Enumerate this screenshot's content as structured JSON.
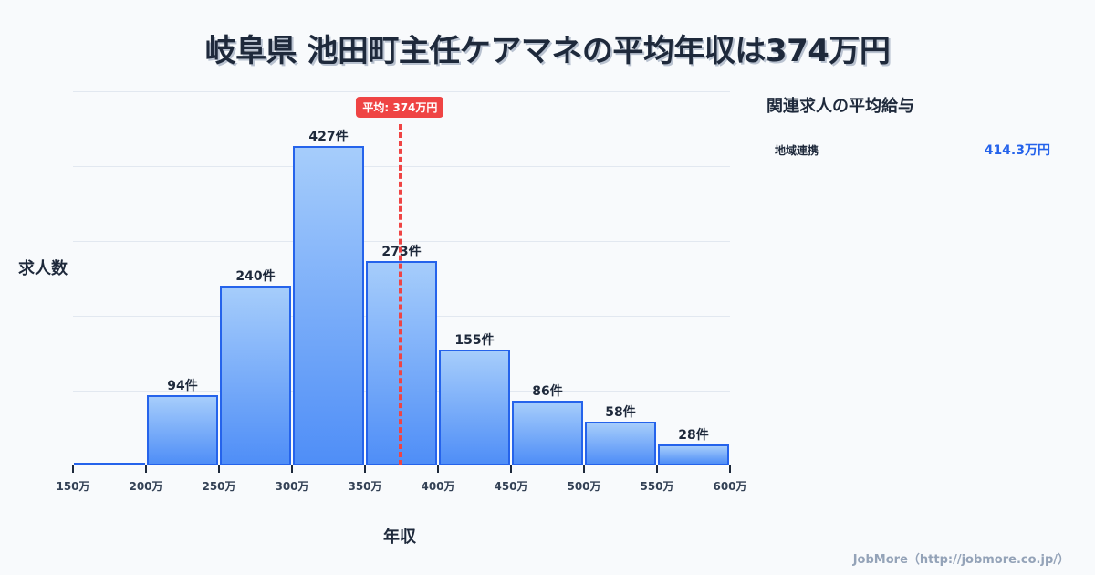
{
  "title": "岐阜県 池田町主任ケアマネの平均年収は374万円",
  "chart_data": {
    "type": "bar",
    "title": "岐阜県 池田町主任ケアマネの平均年収は374万円",
    "xlabel": "年収",
    "ylabel": "求人数",
    "bins": [
      [
        150,
        200
      ],
      [
        200,
        250
      ],
      [
        250,
        300
      ],
      [
        300,
        350
      ],
      [
        350,
        400
      ],
      [
        400,
        450
      ],
      [
        450,
        500
      ],
      [
        500,
        550
      ],
      [
        550,
        600
      ]
    ],
    "categories": [
      "150-200万",
      "200-250万",
      "250-300万",
      "300-350万",
      "350-400万",
      "400-450万",
      "450-500万",
      "500-550万",
      "550-600万"
    ],
    "values": [
      0,
      94,
      240,
      427,
      273,
      155,
      86,
      58,
      28
    ],
    "value_labels": [
      "",
      "94件",
      "240件",
      "427件",
      "273件",
      "155件",
      "86件",
      "58件",
      "28件"
    ],
    "x_ticks": [
      "150万",
      "200万",
      "250万",
      "300万",
      "350万",
      "400万",
      "450万",
      "500万",
      "550万",
      "600万"
    ],
    "x_range": [
      150,
      600
    ],
    "ylim": [
      0,
      500
    ],
    "y_gridlines": [
      0,
      100,
      200,
      300,
      400,
      500
    ],
    "grid": true,
    "mean": {
      "value": 374,
      "label": "平均: 374万円",
      "color": "#ef4444"
    },
    "bar_color_top": "#a6cdfb",
    "bar_color_bottom": "#4f8ef7",
    "bar_border": "#2563eb"
  },
  "side_panel": {
    "title": "関連求人の平均給与",
    "rows": [
      {
        "label": "地域連携",
        "value": "414.3万円"
      }
    ]
  },
  "footer": "JobMore（http://jobmore.co.jp/）"
}
